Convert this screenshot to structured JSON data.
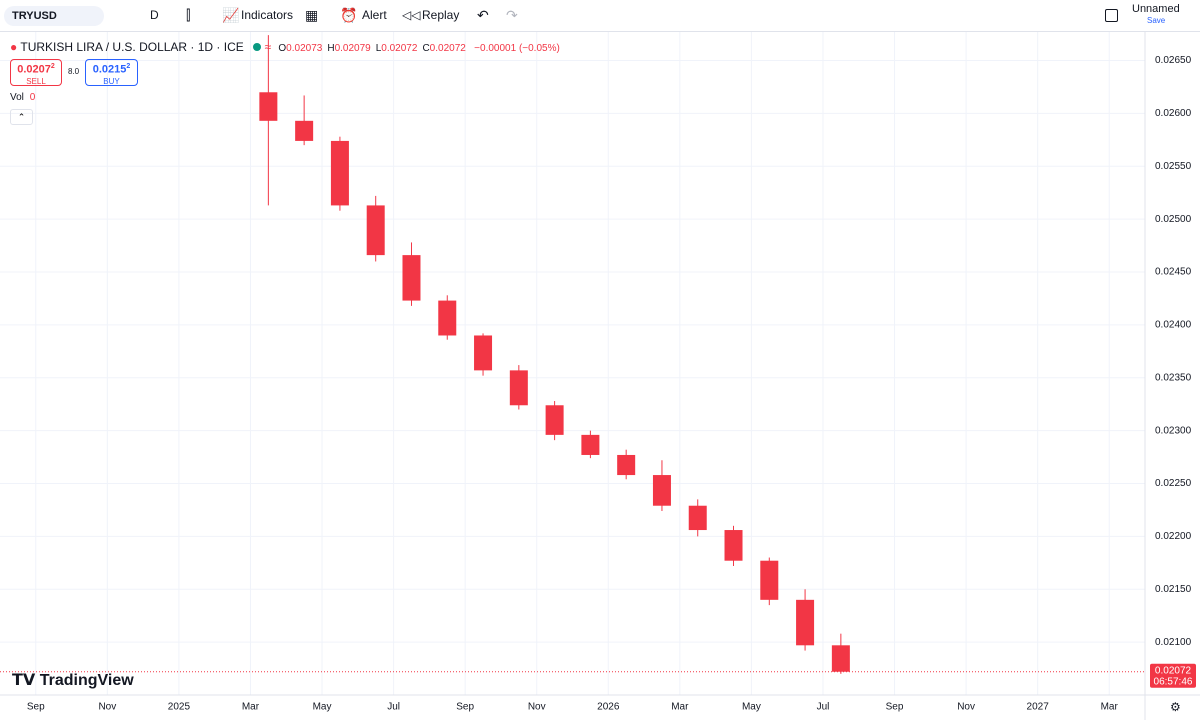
{
  "toolbar": {
    "symbol": "TRYUSD",
    "interval": "D",
    "indicators": "Indicators",
    "alert": "Alert",
    "replay": "Replay",
    "layout_name": "Unnamed",
    "save": "Save"
  },
  "legend": {
    "title": "TURKISH LIRA / U.S. DOLLAR · 1D · ICE",
    "ohlc": [
      {
        "label": "O",
        "value": "0.02073"
      },
      {
        "label": "H",
        "value": "0.02079"
      },
      {
        "label": "L",
        "value": "0.02072"
      },
      {
        "label": "C",
        "value": "0.02072"
      }
    ],
    "change": "−0.00001 (−0.05%)"
  },
  "trade": {
    "sell_price": "0.0207",
    "sell_sup": "2",
    "sell": "SELL",
    "spread": "8.0",
    "buy_price": "0.0215",
    "buy_sup": "2",
    "buy": "BUY"
  },
  "volume": {
    "label": "Vol",
    "value": "0"
  },
  "watermark": "TradingView",
  "chart_data": {
    "type": "candlestick",
    "x": [
      "2025-03",
      "2025-04",
      "2025-05",
      "2025-06",
      "2025-07",
      "2025-08",
      "2025-09",
      "2025-10",
      "2025-11",
      "2025-12",
      "2026-01",
      "2026-02",
      "2026-03",
      "2026-04",
      "2026-05",
      "2026-06",
      "2026-07"
    ],
    "open": [
      0.0262,
      0.02593,
      0.02574,
      0.02513,
      0.02466,
      0.02423,
      0.0239,
      0.02357,
      0.02324,
      0.02296,
      0.02277,
      0.02258,
      0.02229,
      0.02206,
      0.02177,
      0.0214,
      0.02097
    ],
    "high": [
      0.02674,
      0.02617,
      0.02578,
      0.02522,
      0.02478,
      0.02428,
      0.02392,
      0.02362,
      0.02328,
      0.023,
      0.02282,
      0.02272,
      0.02235,
      0.0221,
      0.0218,
      0.0215,
      0.02108
    ],
    "low": [
      0.02513,
      0.0257,
      0.02508,
      0.0246,
      0.02418,
      0.02386,
      0.02352,
      0.0232,
      0.02291,
      0.02274,
      0.02254,
      0.02224,
      0.022,
      0.02172,
      0.02135,
      0.02092,
      0.0207
    ],
    "close": [
      0.02593,
      0.02574,
      0.02513,
      0.02466,
      0.02423,
      0.0239,
      0.02357,
      0.02324,
      0.02296,
      0.02277,
      0.02258,
      0.02229,
      0.02206,
      0.02177,
      0.0214,
      0.02097,
      0.02072
    ],
    "up_color": "#089981",
    "down_color": "#f23645",
    "ylim": [
      0.0205,
      0.02677
    ],
    "yticks": [
      {
        "value": 0.021,
        "label": "0.02100"
      },
      {
        "value": 0.0215,
        "label": "0.02150"
      },
      {
        "value": 0.022,
        "label": "0.02200"
      },
      {
        "value": 0.0225,
        "label": "0.02250"
      },
      {
        "value": 0.023,
        "label": "0.02300"
      },
      {
        "value": 0.0235,
        "label": "0.02350"
      },
      {
        "value": 0.024,
        "label": "0.02400"
      },
      {
        "value": 0.0245,
        "label": "0.02450"
      },
      {
        "value": 0.025,
        "label": "0.02500"
      },
      {
        "value": 0.0255,
        "label": "0.02550"
      },
      {
        "value": 0.026,
        "label": "0.02600"
      },
      {
        "value": 0.0265,
        "label": "0.02650"
      }
    ],
    "xlim": [
      "2024-08",
      "2027-04"
    ],
    "xticks": [
      {
        "value": "2024-09",
        "label": "Sep"
      },
      {
        "value": "2024-11",
        "label": "Nov"
      },
      {
        "value": "2025-01",
        "label": "2025"
      },
      {
        "value": "2025-03",
        "label": "Mar"
      },
      {
        "value": "2025-05",
        "label": "May"
      },
      {
        "value": "2025-07",
        "label": "Jul"
      },
      {
        "value": "2025-09",
        "label": "Sep"
      },
      {
        "value": "2025-11",
        "label": "Nov"
      },
      {
        "value": "2026-01",
        "label": "2026"
      },
      {
        "value": "2026-03",
        "label": "Mar"
      },
      {
        "value": "2026-05",
        "label": "May"
      },
      {
        "value": "2026-07",
        "label": "Jul"
      },
      {
        "value": "2026-09",
        "label": "Sep"
      },
      {
        "value": "2026-11",
        "label": "Nov"
      },
      {
        "value": "2027-01",
        "label": "2027"
      },
      {
        "value": "2027-03",
        "label": "Mar"
      }
    ],
    "grid": true,
    "last_price": 0.02072,
    "countdown": "06:57:46"
  }
}
